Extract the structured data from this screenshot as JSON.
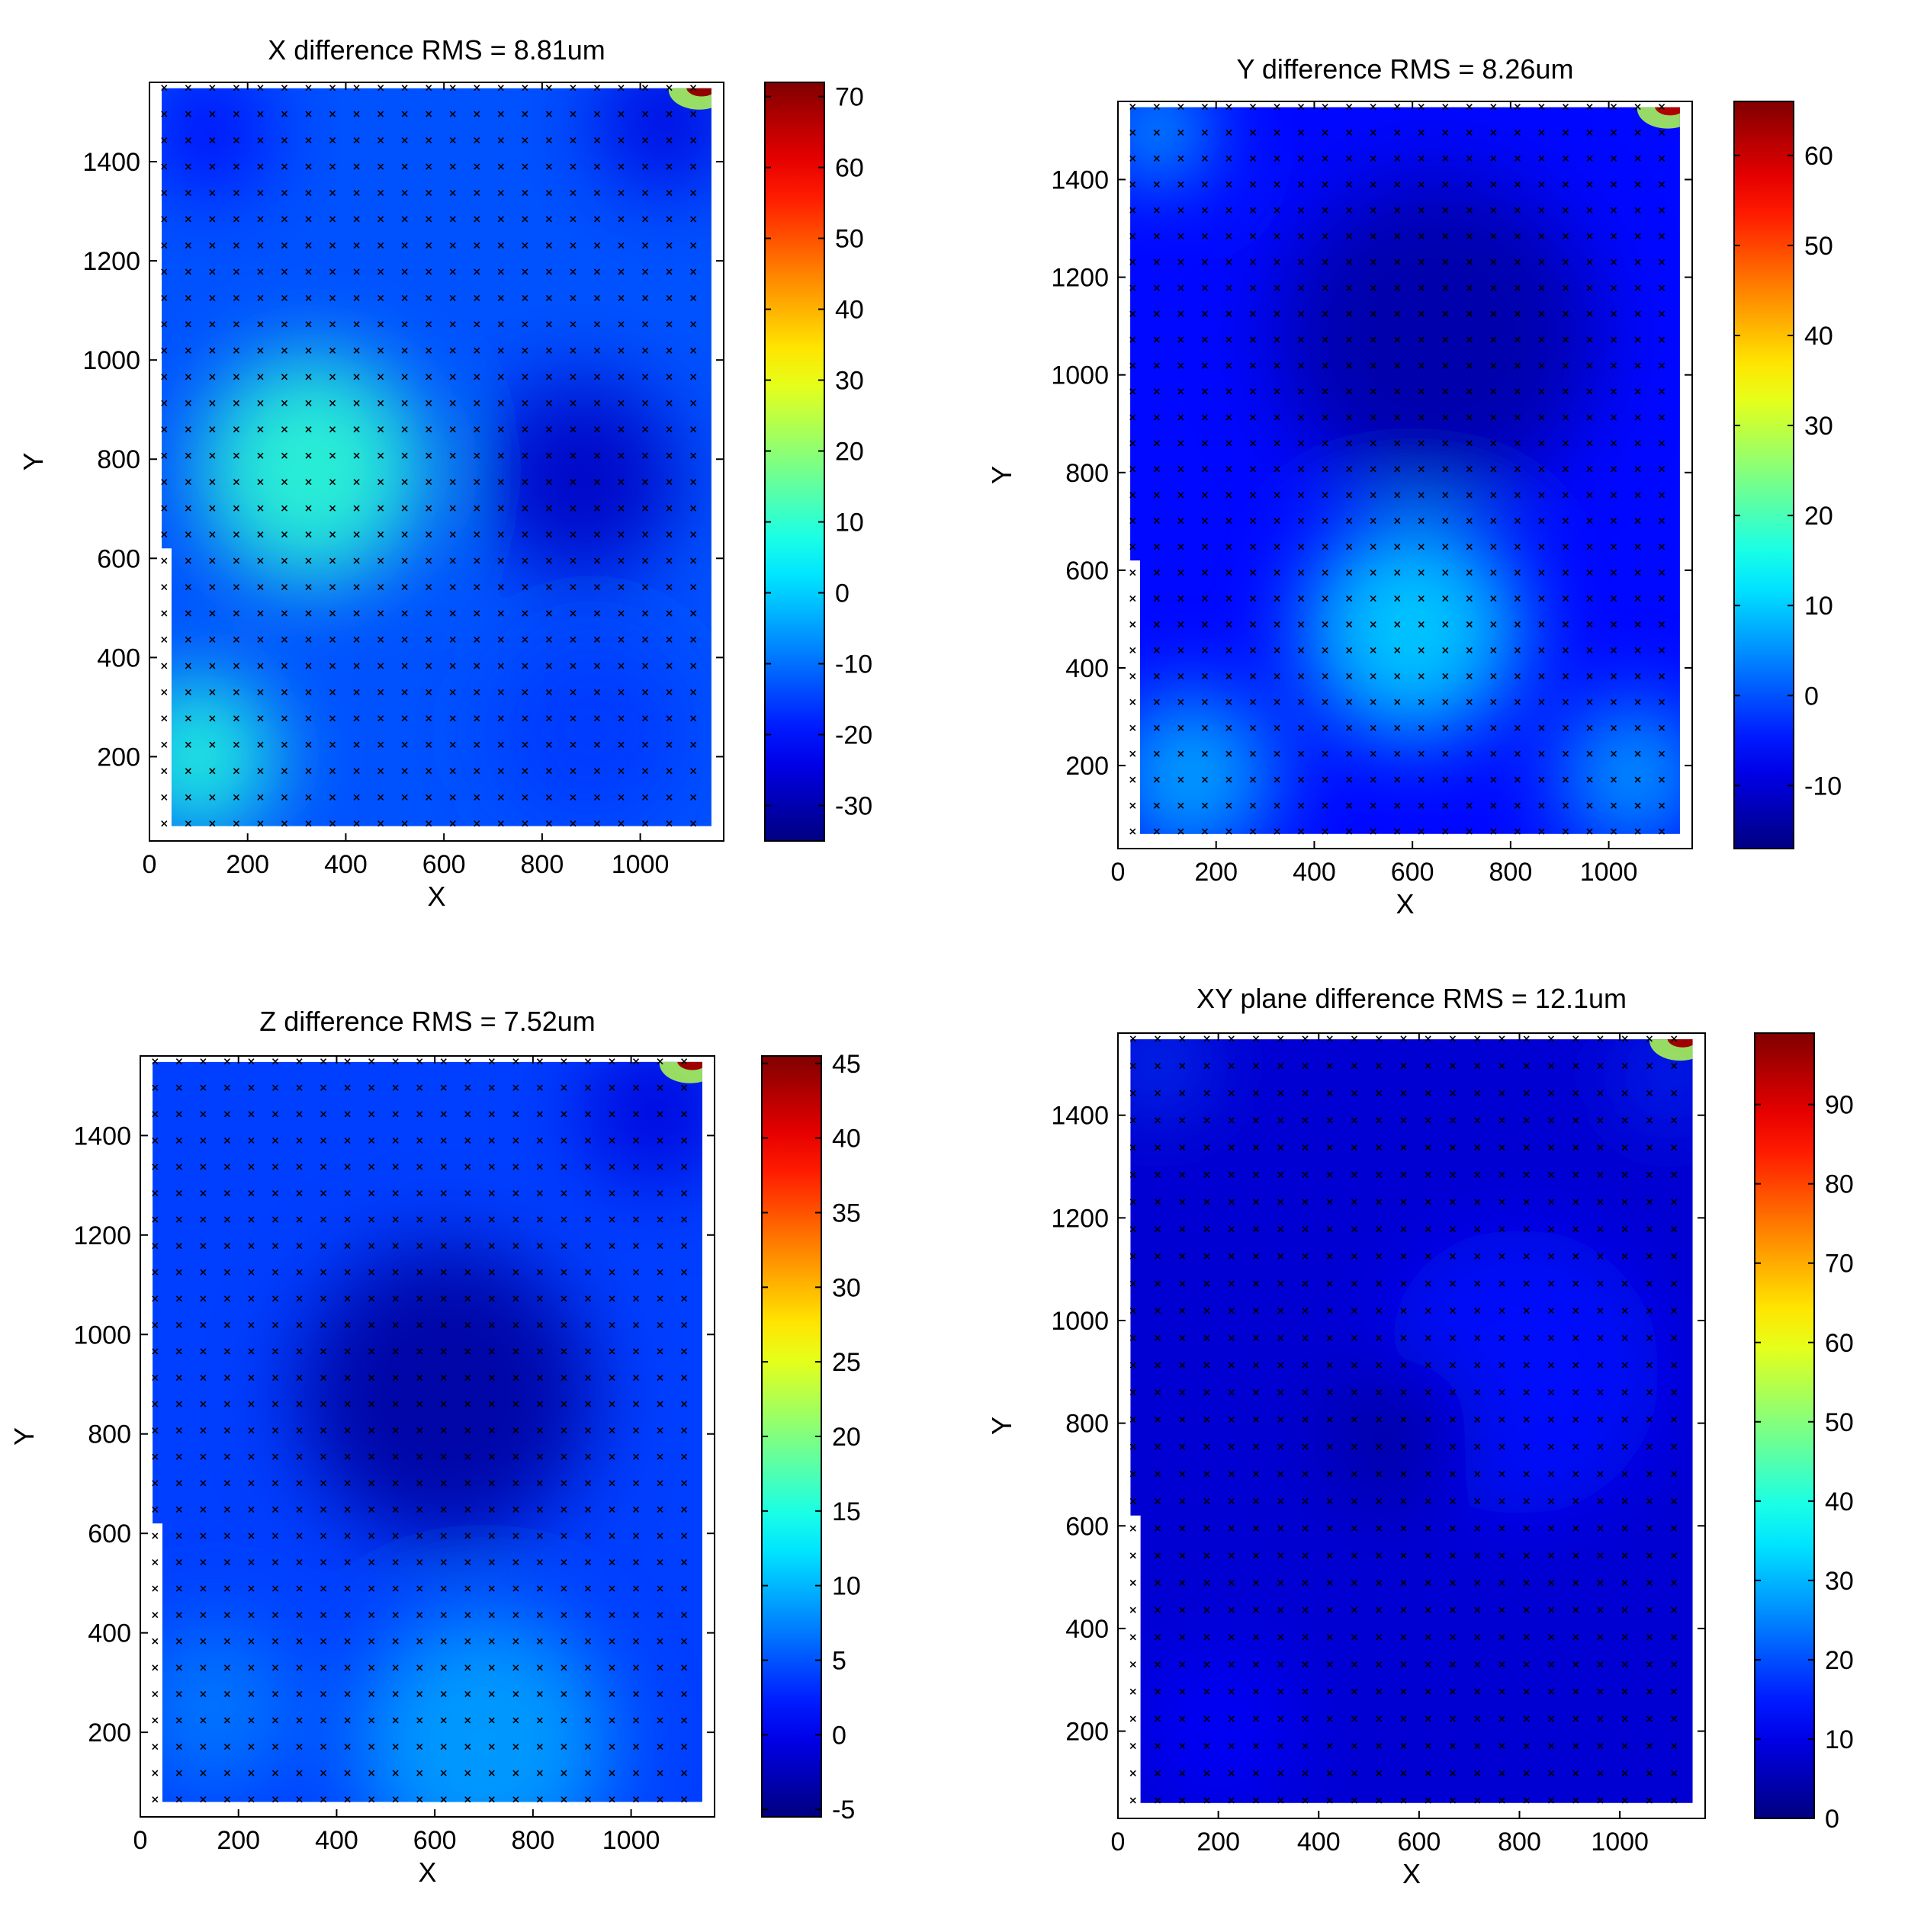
{
  "chart_data": [
    {
      "type": "heatmap",
      "title": "X difference RMS = 8.81um",
      "xlabel": "X",
      "ylabel": "Y",
      "xlim": [
        0,
        1170
      ],
      "ylim": [
        30,
        1560
      ],
      "xticks": [
        "0",
        "200",
        "400",
        "600",
        "800",
        "1000"
      ],
      "yticks": [
        "200",
        "400",
        "600",
        "800",
        "1000",
        "1200",
        "1400"
      ],
      "colorbar": {
        "ticks": [
          "-30",
          "-20",
          "-10",
          "0",
          "10",
          "20",
          "30",
          "40",
          "50",
          "60",
          "70"
        ],
        "min": -35,
        "max": 72
      },
      "features": [
        {
          "x": 330,
          "y": 780,
          "value": 10,
          "r": 230
        },
        {
          "x": 100,
          "y": 200,
          "value": 9,
          "r": 160
        },
        {
          "x": 880,
          "y": 760,
          "value": -28,
          "r": 200
        },
        {
          "x": 120,
          "y": 1460,
          "value": -22,
          "r": 120
        },
        {
          "x": 1050,
          "y": 1480,
          "value": -25,
          "r": 140
        },
        {
          "x": 900,
          "y": 250,
          "value": -16,
          "r": 200
        }
      ],
      "base_value": -13,
      "hot_corner": {
        "x": 1120,
        "y": 1545,
        "value": 70
      }
    },
    {
      "type": "heatmap",
      "title": "Y difference RMS = 8.26um",
      "xlabel": "X",
      "ylabel": "Y",
      "xlim": [
        0,
        1170
      ],
      "ylim": [
        30,
        1560
      ],
      "xticks": [
        "0",
        "200",
        "400",
        "600",
        "800",
        "1000"
      ],
      "yticks": [
        "200",
        "400",
        "600",
        "800",
        "1000",
        "1200",
        "1400"
      ],
      "colorbar": {
        "ticks": [
          "-10",
          "0",
          "10",
          "20",
          "30",
          "40",
          "50",
          "60"
        ],
        "min": -17,
        "max": 66
      },
      "features": [
        {
          "x": 600,
          "y": 480,
          "value": 11,
          "r": 220
        },
        {
          "x": 150,
          "y": 180,
          "value": 8,
          "r": 170
        },
        {
          "x": 1050,
          "y": 180,
          "value": 7,
          "r": 150
        },
        {
          "x": 650,
          "y": 1080,
          "value": -14,
          "r": 330
        },
        {
          "x": 80,
          "y": 1500,
          "value": 14,
          "r": 90
        }
      ],
      "base_value": -6,
      "hot_corner": {
        "x": 1120,
        "y": 1545,
        "value": 62
      }
    },
    {
      "type": "heatmap",
      "title": "Z difference RMS = 7.52um",
      "xlabel": "X",
      "ylabel": "Y",
      "xlim": [
        0,
        1170
      ],
      "ylim": [
        30,
        1560
      ],
      "xticks": [
        "0",
        "200",
        "400",
        "600",
        "800",
        "1000"
      ],
      "yticks": [
        "200",
        "400",
        "600",
        "800",
        "1000",
        "1200",
        "1400"
      ],
      "colorbar": {
        "ticks": [
          "-5",
          "0",
          "5",
          "10",
          "15",
          "20",
          "25",
          "30",
          "35",
          "40",
          "45"
        ],
        "min": -5.5,
        "max": 45.5
      },
      "features": [
        {
          "x": 620,
          "y": 880,
          "value": -4,
          "r": 300
        },
        {
          "x": 700,
          "y": 180,
          "value": 9,
          "r": 260
        },
        {
          "x": 150,
          "y": 250,
          "value": 7,
          "r": 170
        },
        {
          "x": 1050,
          "y": 1450,
          "value": -1,
          "r": 150
        }
      ],
      "base_value": 4,
      "hot_corner": {
        "x": 1120,
        "y": 1545,
        "value": 44
      }
    },
    {
      "type": "heatmap",
      "title": "XY plane difference RMS = 12.1um",
      "xlabel": "X",
      "ylabel": "Y",
      "xlim": [
        0,
        1170
      ],
      "ylim": [
        30,
        1560
      ],
      "xticks": [
        "0",
        "200",
        "400",
        "600",
        "800",
        "1000"
      ],
      "yticks": [
        "200",
        "400",
        "600",
        "800",
        "1000",
        "1200",
        "1400"
      ],
      "colorbar": {
        "ticks": [
          "0",
          "10",
          "20",
          "30",
          "40",
          "50",
          "60",
          "70",
          "80",
          "90"
        ],
        "min": 0,
        "max": 99
      },
      "features": [
        {
          "x": 800,
          "y": 900,
          "value": 14,
          "r": 280
        },
        {
          "x": 560,
          "y": 780,
          "value": 3,
          "r": 140
        },
        {
          "x": 200,
          "y": 200,
          "value": 12,
          "r": 160
        },
        {
          "x": 80,
          "y": 1500,
          "value": 20,
          "r": 80
        },
        {
          "x": 1100,
          "y": 1480,
          "value": 18,
          "r": 80
        }
      ],
      "base_value": 8,
      "hot_corner": {
        "x": 1120,
        "y": 1545,
        "value": 96
      }
    }
  ]
}
